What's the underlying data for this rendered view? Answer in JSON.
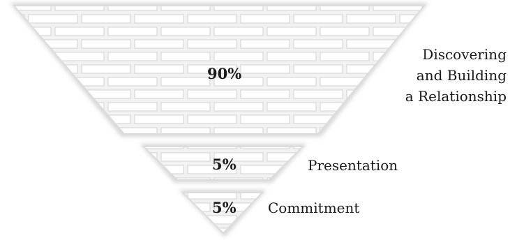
{
  "diagram": {
    "tiers": [
      {
        "percent": "90%",
        "label_lines": [
          "Discovering",
          "and Building",
          "a Relationship"
        ]
      },
      {
        "percent": "5%",
        "label_lines": [
          "Presentation"
        ]
      },
      {
        "percent": "5%",
        "label_lines": [
          "Commitment"
        ]
      }
    ],
    "colors": {
      "brick_fill": "#efefef",
      "mortar": "#ffffff",
      "edge_shadow": "#c8c8c8",
      "text": "#1a1a1a"
    }
  }
}
